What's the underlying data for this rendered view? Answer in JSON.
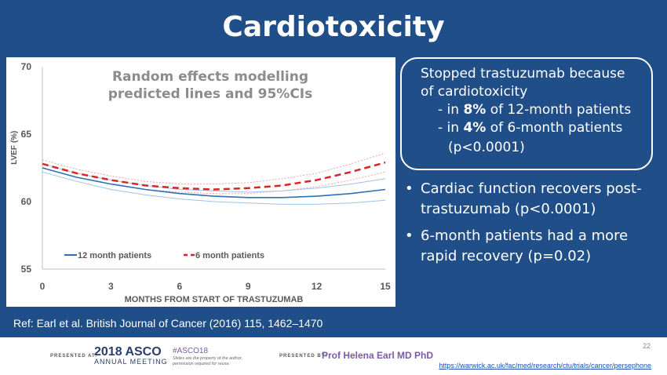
{
  "slide": {
    "title": "Cardiotoxicity",
    "callout": {
      "line1": "Stopped trastuzumab because",
      "line2": "of cardiotoxicity",
      "item1_pre": "- in ",
      "item1_bold": "8%",
      "item1_post": " of 12-month patients",
      "item2_pre": "- in ",
      "item2_bold": "4%",
      "item2_post": " of 6-month patients",
      "pvalue": "(p<0.0001)"
    },
    "bullets": [
      "Cardiac function recovers post-trastuzumab (p<0.0001)",
      "6-month patients had a more rapid recovery (p=0.02)"
    ],
    "bullet_glyph": "•",
    "reference": "Ref: Earl et al. British Journal of Cancer (2016) 115, 1462–1470",
    "colors": {
      "background": "#1f4e89",
      "series_12_month": "#2e6fb5",
      "series_6_month": "#d62728",
      "ci_12_month": "#9dc3e6",
      "ci_6_month": "#f4a0a0"
    }
  },
  "footer": {
    "presented_at": "PRESENTED AT:",
    "asco_year": "2018 ASCO",
    "asco_sub": "ANNUAL MEETING",
    "hashtag": "#ASCO18",
    "rights": "Slides are the property of the author, permission required for reuse.",
    "presented_by": "PRESENTED BY:",
    "presenter": "Prof Helena Earl MD PhD",
    "page_number": "22",
    "url": "https://warwick.ac.uk/fac/med/research/ctu/trials/cancer/persephone"
  },
  "chart_data": {
    "type": "line",
    "title": "Random effects modelling predicted lines and 95%CIs",
    "title_lines": [
      "Random effects modelling",
      "predicted lines and 95%CIs"
    ],
    "xlabel": "MONTHS FROM START OF TRASTUZUMAB",
    "ylabel": "LVEF (%)",
    "xlim": [
      0,
      15
    ],
    "ylim": [
      55,
      70
    ],
    "xticks": [
      0,
      3,
      6,
      9,
      12,
      15
    ],
    "yticks": [
      55,
      60,
      65,
      70
    ],
    "grid": false,
    "legend_position": "bottom-left",
    "x": [
      0,
      1.5,
      3,
      4.5,
      6,
      7.5,
      9,
      10.5,
      12,
      13.5,
      15
    ],
    "series": [
      {
        "name": "12 month patients",
        "style": "solid",
        "values": [
          62.5,
          61.8,
          61.3,
          60.9,
          60.6,
          60.4,
          60.3,
          60.3,
          60.4,
          60.6,
          60.9
        ],
        "ci_lower": [
          62.2,
          61.5,
          60.9,
          60.5,
          60.2,
          60.0,
          59.9,
          59.8,
          59.8,
          59.9,
          60.1
        ],
        "ci_upper": [
          62.8,
          62.1,
          61.6,
          61.2,
          60.9,
          60.8,
          60.7,
          60.8,
          61.0,
          61.3,
          61.7
        ]
      },
      {
        "name": "6 month patients",
        "style": "dashed",
        "values": [
          62.8,
          62.1,
          61.6,
          61.2,
          61.0,
          60.9,
          61.0,
          61.2,
          61.6,
          62.2,
          62.9
        ],
        "ci_lower": [
          62.5,
          61.8,
          61.3,
          60.9,
          60.7,
          60.6,
          60.6,
          60.8,
          61.1,
          61.6,
          62.2
        ],
        "ci_upper": [
          63.1,
          62.4,
          61.9,
          61.5,
          61.3,
          61.3,
          61.4,
          61.7,
          62.1,
          62.8,
          63.6
        ]
      }
    ]
  }
}
